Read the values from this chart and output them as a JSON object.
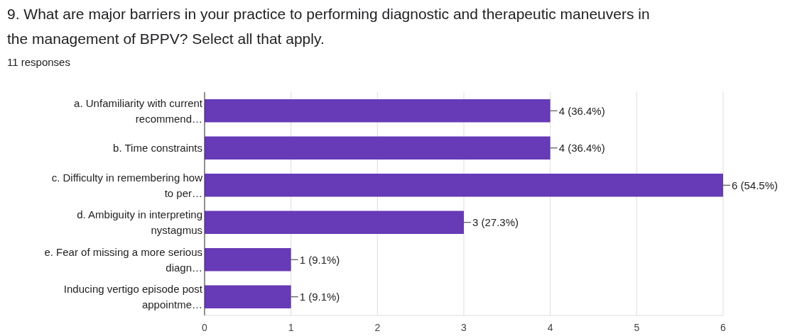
{
  "chart_data": {
    "type": "bar",
    "orientation": "horizontal",
    "title": "9. What are major barriers in your practice to performing diagnostic and therapeutic maneuvers in the management of BPPV? Select all that apply.",
    "subtitle": "11 responses",
    "categories": [
      "a. Unfamiliarity with current recommend…",
      "b. Time constraints",
      "c. Difficulty in remembering how to per…",
      "d. Ambiguity in interpreting nystagmus",
      "e. Fear of missing a more serious diagn…",
      "Inducing vertigo episode post appointme…"
    ],
    "values": [
      4,
      4,
      6,
      3,
      1,
      1
    ],
    "value_labels": [
      "4 (36.4%)",
      "4 (36.4%)",
      "6 (54.5%)",
      "3 (27.3%)",
      "1 (9.1%)",
      "1 (9.1%)"
    ],
    "color": "#673ab7",
    "xlim": [
      0,
      6
    ],
    "xticks": [
      0,
      1,
      2,
      3,
      4,
      5,
      6
    ],
    "grid": "x"
  }
}
